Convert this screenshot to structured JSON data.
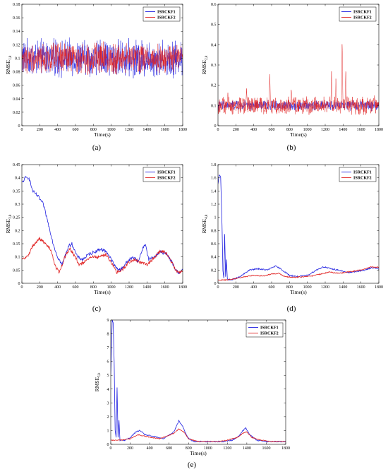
{
  "chart_data": [
    {
      "type": "line",
      "caption": "(a)",
      "xlabel": "Time(s)",
      "ylabel": "RMSE",
      "ylabel_sub": "1,k",
      "xlim": [
        0,
        1800
      ],
      "ylim": [
        0,
        0.18
      ],
      "xticks": [
        0,
        200,
        400,
        600,
        800,
        1000,
        1200,
        1400,
        1600,
        1800
      ],
      "yticks": [
        0,
        0.02,
        0.04,
        0.06,
        0.08,
        0.1,
        0.12,
        0.14,
        0.16,
        0.18
      ],
      "legend_position": "top-right",
      "series": [
        {
          "name": "ISRCKF1",
          "color": "#2020e0",
          "kind": "noise",
          "mean": 0.1,
          "amp": 0.022,
          "points": [
            [
              0,
              0.1
            ],
            [
              1800,
              0.1
            ]
          ]
        },
        {
          "name": "ISRCKF2",
          "color": "#e02020",
          "kind": "noise",
          "mean": 0.1,
          "amp": 0.018,
          "points": [
            [
              0,
              0.1
            ],
            [
              1800,
              0.1
            ]
          ]
        }
      ]
    },
    {
      "type": "line",
      "caption": "(b)",
      "xlabel": "Time(s)",
      "ylabel": "RMSE",
      "ylabel_sub": "2,k",
      "xlim": [
        0,
        1800
      ],
      "ylim": [
        0,
        0.6
      ],
      "xticks": [
        0,
        200,
        400,
        600,
        800,
        1000,
        1200,
        1400,
        1600,
        1800
      ],
      "yticks": [
        0,
        0.1,
        0.2,
        0.3,
        0.4,
        0.5,
        0.6
      ],
      "legend_position": "top-right",
      "series": [
        {
          "name": "ISRCKF1",
          "color": "#2020e0",
          "kind": "noise",
          "mean": 0.1,
          "amp": 0.02,
          "points": [
            [
              0,
              0.1
            ],
            [
              1800,
              0.1
            ]
          ]
        },
        {
          "name": "ISRCKF2",
          "color": "#e02020",
          "kind": "noise",
          "mean": 0.1,
          "amp": 0.035,
          "spikes": [
            [
              110,
              0.17
            ],
            [
              320,
              0.2
            ],
            [
              580,
              0.3
            ],
            [
              820,
              0.21
            ],
            [
              1270,
              0.29
            ],
            [
              1320,
              0.25
            ],
            [
              1390,
              0.47
            ],
            [
              1430,
              0.34
            ],
            [
              1750,
              0.16
            ]
          ],
          "points": [
            [
              0,
              0.1
            ],
            [
              1800,
              0.1
            ]
          ]
        }
      ]
    },
    {
      "type": "line",
      "caption": "(c)",
      "xlabel": "Time(s)",
      "ylabel": "RMSE",
      "ylabel_sub": "3,k",
      "xlim": [
        0,
        1800
      ],
      "ylim": [
        0,
        0.45
      ],
      "xticks": [
        0,
        200,
        400,
        600,
        800,
        1000,
        1200,
        1400,
        1600,
        1800
      ],
      "yticks": [
        0,
        0.05,
        0.1,
        0.15,
        0.2,
        0.25,
        0.3,
        0.35,
        0.4,
        0.45
      ],
      "legend_position": "top-right",
      "series": [
        {
          "name": "ISRCKF1",
          "color": "#2020e0",
          "kind": "smooth",
          "amp": 0.006,
          "points": [
            [
              0,
              0.38
            ],
            [
              40,
              0.4
            ],
            [
              80,
              0.4
            ],
            [
              120,
              0.35
            ],
            [
              180,
              0.33
            ],
            [
              240,
              0.3
            ],
            [
              300,
              0.22
            ],
            [
              350,
              0.15
            ],
            [
              400,
              0.1
            ],
            [
              450,
              0.07
            ],
            [
              520,
              0.14
            ],
            [
              560,
              0.15
            ],
            [
              620,
              0.1
            ],
            [
              680,
              0.09
            ],
            [
              750,
              0.11
            ],
            [
              820,
              0.12
            ],
            [
              880,
              0.13
            ],
            [
              950,
              0.12
            ],
            [
              1000,
              0.09
            ],
            [
              1050,
              0.06
            ],
            [
              1100,
              0.05
            ],
            [
              1150,
              0.07
            ],
            [
              1200,
              0.09
            ],
            [
              1260,
              0.1
            ],
            [
              1300,
              0.08
            ],
            [
              1350,
              0.13
            ],
            [
              1380,
              0.15
            ],
            [
              1420,
              0.09
            ],
            [
              1480,
              0.1
            ],
            [
              1550,
              0.12
            ],
            [
              1620,
              0.11
            ],
            [
              1680,
              0.08
            ],
            [
              1720,
              0.05
            ],
            [
              1760,
              0.04
            ],
            [
              1800,
              0.05
            ]
          ]
        },
        {
          "name": "ISRCKF2",
          "color": "#e02020",
          "kind": "smooth",
          "amp": 0.006,
          "points": [
            [
              0,
              0.09
            ],
            [
              60,
              0.1
            ],
            [
              120,
              0.14
            ],
            [
              200,
              0.17
            ],
            [
              260,
              0.15
            ],
            [
              320,
              0.13
            ],
            [
              380,
              0.06
            ],
            [
              420,
              0.04
            ],
            [
              480,
              0.1
            ],
            [
              540,
              0.13
            ],
            [
              580,
              0.11
            ],
            [
              640,
              0.07
            ],
            [
              700,
              0.08
            ],
            [
              780,
              0.1
            ],
            [
              860,
              0.1
            ],
            [
              940,
              0.11
            ],
            [
              1000,
              0.08
            ],
            [
              1060,
              0.04
            ],
            [
              1120,
              0.05
            ],
            [
              1200,
              0.08
            ],
            [
              1260,
              0.09
            ],
            [
              1320,
              0.08
            ],
            [
              1400,
              0.07
            ],
            [
              1460,
              0.09
            ],
            [
              1540,
              0.12
            ],
            [
              1600,
              0.12
            ],
            [
              1660,
              0.09
            ],
            [
              1720,
              0.05
            ],
            [
              1760,
              0.04
            ],
            [
              1800,
              0.05
            ]
          ]
        }
      ]
    },
    {
      "type": "line",
      "caption": "(d)",
      "xlabel": "Time(s)",
      "ylabel": "RMSE",
      "ylabel_sub": "4,k",
      "xlim": [
        0,
        1800
      ],
      "ylim": [
        0,
        1.8
      ],
      "xticks": [
        0,
        200,
        400,
        600,
        800,
        1000,
        1200,
        1400,
        1600,
        1800
      ],
      "yticks": [
        0,
        0.2,
        0.4,
        0.6,
        0.8,
        1.0,
        1.2,
        1.4,
        1.6,
        1.8
      ],
      "legend_position": "top-right",
      "series": [
        {
          "name": "ISRCKF1",
          "color": "#2020e0",
          "kind": "smooth",
          "amp": 0.01,
          "points": [
            [
              0,
              1.5
            ],
            [
              15,
              1.65
            ],
            [
              30,
              1.6
            ],
            [
              45,
              0.9
            ],
            [
              55,
              0.2
            ],
            [
              65,
              0.08
            ],
            [
              75,
              0.75
            ],
            [
              85,
              0.1
            ],
            [
              95,
              0.35
            ],
            [
              105,
              0.06
            ],
            [
              150,
              0.05
            ],
            [
              250,
              0.1
            ],
            [
              350,
              0.2
            ],
            [
              450,
              0.22
            ],
            [
              550,
              0.2
            ],
            [
              640,
              0.26
            ],
            [
              700,
              0.22
            ],
            [
              800,
              0.12
            ],
            [
              900,
              0.1
            ],
            [
              1000,
              0.12
            ],
            [
              1100,
              0.2
            ],
            [
              1180,
              0.25
            ],
            [
              1260,
              0.22
            ],
            [
              1350,
              0.2
            ],
            [
              1450,
              0.16
            ],
            [
              1550,
              0.18
            ],
            [
              1650,
              0.2
            ],
            [
              1720,
              0.24
            ],
            [
              1800,
              0.22
            ]
          ]
        },
        {
          "name": "ISRCKF2",
          "color": "#e02020",
          "kind": "smooth",
          "amp": 0.008,
          "points": [
            [
              0,
              0.05
            ],
            [
              100,
              0.05
            ],
            [
              200,
              0.07
            ],
            [
              300,
              0.1
            ],
            [
              400,
              0.12
            ],
            [
              500,
              0.11
            ],
            [
              600,
              0.14
            ],
            [
              680,
              0.15
            ],
            [
              750,
              0.1
            ],
            [
              850,
              0.09
            ],
            [
              950,
              0.1
            ],
            [
              1050,
              0.11
            ],
            [
              1150,
              0.14
            ],
            [
              1250,
              0.17
            ],
            [
              1350,
              0.15
            ],
            [
              1450,
              0.17
            ],
            [
              1550,
              0.19
            ],
            [
              1650,
              0.22
            ],
            [
              1720,
              0.25
            ],
            [
              1800,
              0.24
            ]
          ]
        }
      ]
    },
    {
      "type": "line",
      "caption": "(e)",
      "xlabel": "Time(s)",
      "ylabel": "RMSE",
      "ylabel_sub": "5,k",
      "xlim": [
        0,
        1800
      ],
      "ylim": [
        0,
        9
      ],
      "xticks": [
        0,
        200,
        400,
        600,
        800,
        1000,
        1200,
        1400,
        1600,
        1800
      ],
      "yticks": [
        0,
        1,
        2,
        3,
        4,
        5,
        6,
        7,
        8,
        9
      ],
      "legend_position": "top-right",
      "series": [
        {
          "name": "ISRCKF1",
          "color": "#2020e0",
          "kind": "smooth",
          "amp": 0.04,
          "points": [
            [
              0,
              5.0
            ],
            [
              15,
              9.0
            ],
            [
              25,
              8.8
            ],
            [
              35,
              6.0
            ],
            [
              45,
              1.0
            ],
            [
              55,
              0.5
            ],
            [
              65,
              4.1
            ],
            [
              75,
              0.5
            ],
            [
              85,
              1.7
            ],
            [
              95,
              0.3
            ],
            [
              150,
              0.3
            ],
            [
              200,
              0.5
            ],
            [
              260,
              0.9
            ],
            [
              300,
              1.0
            ],
            [
              350,
              0.7
            ],
            [
              420,
              0.6
            ],
            [
              480,
              0.5
            ],
            [
              540,
              0.4
            ],
            [
              600,
              0.7
            ],
            [
              650,
              0.9
            ],
            [
              700,
              1.7
            ],
            [
              740,
              1.3
            ],
            [
              790,
              0.5
            ],
            [
              850,
              0.2
            ],
            [
              950,
              0.2
            ],
            [
              1050,
              0.2
            ],
            [
              1150,
              0.2
            ],
            [
              1250,
              0.3
            ],
            [
              1320,
              0.6
            ],
            [
              1360,
              1.0
            ],
            [
              1390,
              1.2
            ],
            [
              1430,
              0.7
            ],
            [
              1500,
              0.3
            ],
            [
              1600,
              0.2
            ],
            [
              1700,
              0.2
            ],
            [
              1800,
              0.2
            ]
          ]
        },
        {
          "name": "ISRCKF2",
          "color": "#e02020",
          "kind": "smooth",
          "amp": 0.03,
          "points": [
            [
              0,
              0.3
            ],
            [
              100,
              0.3
            ],
            [
              200,
              0.4
            ],
            [
              280,
              0.7
            ],
            [
              340,
              0.6
            ],
            [
              420,
              0.5
            ],
            [
              500,
              0.4
            ],
            [
              580,
              0.6
            ],
            [
              650,
              0.8
            ],
            [
              700,
              1.1
            ],
            [
              750,
              0.9
            ],
            [
              800,
              0.4
            ],
            [
              900,
              0.2
            ],
            [
              1000,
              0.2
            ],
            [
              1100,
              0.2
            ],
            [
              1200,
              0.3
            ],
            [
              1300,
              0.5
            ],
            [
              1360,
              0.8
            ],
            [
              1400,
              0.9
            ],
            [
              1450,
              0.5
            ],
            [
              1550,
              0.3
            ],
            [
              1650,
              0.2
            ],
            [
              1800,
              0.2
            ]
          ]
        }
      ]
    }
  ]
}
